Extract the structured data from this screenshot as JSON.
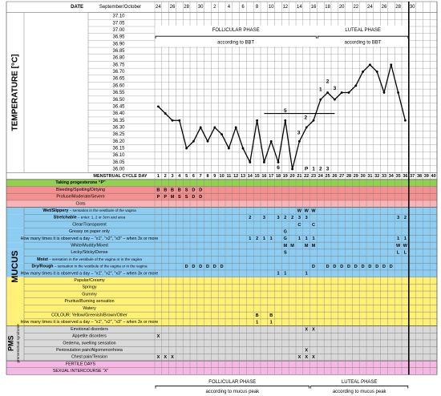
{
  "chart_data": {
    "type": "line",
    "date_label": "DATE",
    "month_label": "September/October",
    "dates": [
      "24",
      "26",
      "28",
      "30",
      "2",
      "4",
      "6",
      "8",
      "10",
      "12",
      "14",
      "16",
      "18",
      "20",
      "22",
      "24",
      "26",
      "28",
      "30"
    ],
    "y_label": "TEMPERATURE [°C]",
    "x_label": "MENSTRUAL CYCLE DAY",
    "x": [
      1,
      2,
      3,
      4,
      5,
      6,
      7,
      8,
      9,
      10,
      11,
      12,
      13,
      14,
      15,
      16,
      17,
      18,
      19,
      20,
      21,
      22,
      23,
      24,
      25,
      26,
      27,
      28,
      29,
      30,
      31,
      32,
      33,
      34,
      35,
      36,
      37,
      38,
      39,
      40
    ],
    "xlim": [
      0.5,
      40.5
    ],
    "values": [
      36.45,
      36.4,
      36.35,
      36.35,
      36.15,
      36.2,
      36.3,
      36.2,
      36.3,
      36.25,
      36.15,
      36.3,
      36.15,
      36.05,
      36.35,
      36.05,
      36.2,
      36.05,
      36.35,
      36.0,
      36.2,
      36.3,
      36.35,
      36.5,
      36.55,
      36.5,
      36.55,
      36.55,
      36.6,
      36.7,
      36.75,
      36.7,
      36.55,
      36.75,
      36.55,
      36.35,
      null,
      null,
      null,
      null
    ],
    "color": "#000000",
    "ylim": [
      36.0,
      37.1
    ],
    "yticks": [
      {
        "value": 37.1,
        "label": "37.10"
      },
      {
        "value": 37.05,
        "label": "37.05"
      },
      {
        "value": 37.0,
        "label": "37.00"
      },
      {
        "value": 36.95,
        "label": "36.95"
      },
      {
        "value": 36.9,
        "label": "36.90"
      },
      {
        "value": 36.85,
        "label": "36.85"
      },
      {
        "value": 36.8,
        "label": "36.80"
      },
      {
        "value": 36.75,
        "label": "36.75"
      },
      {
        "value": 36.7,
        "label": "36.70"
      },
      {
        "value": 36.65,
        "label": "36.65"
      },
      {
        "value": 36.6,
        "label": "36.60"
      },
      {
        "value": 36.55,
        "label": "36.55"
      },
      {
        "value": 36.5,
        "label": "36.50"
      },
      {
        "value": 36.45,
        "label": "36.45"
      },
      {
        "value": 36.4,
        "label": "36.40"
      },
      {
        "value": 36.35,
        "label": "36.35"
      },
      {
        "value": 36.3,
        "label": "36.30"
      },
      {
        "value": 36.25,
        "label": "36.25"
      },
      {
        "value": 36.2,
        "label": "36.20"
      },
      {
        "value": 36.15,
        "label": "36.15"
      },
      {
        "value": 36.1,
        "label": "36.10"
      },
      {
        "value": 36.05,
        "label": "36.05"
      },
      {
        "value": 36.0,
        "label": "36.00"
      }
    ],
    "coverline": {
      "value": 36.4,
      "from": 16,
      "to": 26
    },
    "annotations": [
      {
        "x": 19,
        "y": 36.42,
        "text": "5"
      },
      {
        "x": 18,
        "y": 36.01,
        "text": "6"
      },
      {
        "x": 20.9,
        "y": 36.26,
        "text": "3"
      },
      {
        "x": 21.9,
        "y": 36.37,
        "text": "2"
      },
      {
        "x": 24,
        "y": 36.57,
        "text": "1"
      },
      {
        "x": 25,
        "y": 36.63,
        "text": "2"
      },
      {
        "x": 26,
        "y": 36.58,
        "text": "3"
      },
      {
        "x": 22,
        "y": 36.0,
        "text": "P"
      },
      {
        "x": 23,
        "y": 36.0,
        "text": "1"
      },
      {
        "x": 24,
        "y": 36.0,
        "text": "2"
      },
      {
        "x": 25,
        "y": 36.0,
        "text": "3"
      }
    ],
    "phases": [
      {
        "name": "FOLLICULAR PHASE",
        "note": "according to BBT",
        "from": 1,
        "to": 23
      },
      {
        "name": "LUTEAL PHASE",
        "note": "according to BBT",
        "from": 24,
        "to": 36
      }
    ]
  },
  "table": {
    "sections": [
      {
        "rows": [
          {
            "label": "Taking progesterone “P”",
            "color": "#92d050",
            "cells": {}
          },
          {
            "label": "Bleeding/Spotting/Dirtying",
            "color": "#f4908f",
            "cells": {
              "1": "B",
              "2": "B",
              "3": "B",
              "4": "B",
              "5": "S",
              "6": "D",
              "7": "D"
            }
          },
          {
            "label": "Profuse/Moderate/Severe",
            "color": "#f4908f",
            "cells": {
              "1": "P",
              "2": "P",
              "3": "M",
              "4": "S",
              "5": "S",
              "6": "D",
              "7": "D"
            }
          },
          {
            "label": "Clots",
            "color": "#f8b4b4",
            "cells": {}
          }
        ]
      },
      {
        "title": "MUCUS",
        "rows": [
          {
            "label": "Wet/Slippery",
            "note": " – sensation in the vestibule of the vagina",
            "color": "#8ecdf2",
            "cells": {
              "21": "W",
              "22": "W",
              "23": "W"
            }
          },
          {
            "label": "Stretchable",
            "note": " – enter: 1, 2 or 3cm and area",
            "color": "#8ecdf2",
            "cells": {
              "14": "2",
              "16": "3",
              "18": "3",
              "19": "2",
              "20": "2",
              "21": "3",
              "22": "3",
              "35": "3",
              "36": "2"
            }
          },
          {
            "label": "Clear/Transparent",
            "color": "#8ecdf2",
            "cells": {
              "21": "C",
              "23": "C"
            }
          },
          {
            "label": "Greasy on paper only",
            "color": "#8ecdf2",
            "cells": {
              "19": "G"
            }
          },
          {
            "label": "How many times it is observed a day – \"x1\", \"x2\", \"x3\" – when 3x or more",
            "color": "#8ecdf2",
            "cells": {
              "14": "1",
              "15": "2",
              "16": "1",
              "17": "1",
              "19": "G",
              "21": "1",
              "22": "1",
              "23": "1",
              "35": "1",
              "36": "1"
            }
          },
          {
            "label": "White/Muddy/Mixed",
            "color": "#8ecdf2",
            "cells": {
              "19": "M",
              "20": "M",
              "22": "M",
              "23": "M",
              "35": "W",
              "36": "W"
            }
          },
          {
            "label": "Lecky/Sticky/Dense",
            "color": "#8ecdf2",
            "cells": {
              "19": "S",
              "35": "L",
              "36": "L"
            }
          },
          {
            "label": "Moist",
            "note": " – sensation in the vestibule of the vagina or in the vagina",
            "color": "#8ecdf2",
            "cells": {}
          },
          {
            "label": "Dry/Rough",
            "note": " – sensation in the vestibule of the vagina or in the vagina",
            "color": "#8ecdf2",
            "cells": {
              "5": "D",
              "6": "D",
              "7": "D",
              "8": "D",
              "9": "D",
              "10": "D",
              "23": "D",
              "25": "D",
              "26": "D",
              "27": "D",
              "28": "D",
              "29": "D",
              "30": "D",
              "31": "D",
              "32": "D",
              "33": "D",
              "34": "D"
            }
          },
          {
            "label": "How many times it is observed a day – \"x1\", \"x2\", \"x3\" – when 3x or more",
            "color": "#8ecdf2",
            "cells": {
              "18": "1",
              "19": "1",
              "22": "1"
            }
          },
          {
            "label": "Papular/Creamy",
            "color": "#fff176",
            "cells": {}
          },
          {
            "label": "Springy",
            "color": "#fff176",
            "cells": {}
          },
          {
            "label": "Gummy",
            "color": "#fff176",
            "cells": {}
          },
          {
            "label": "Pruritus/Burning sensation",
            "color": "#fff176",
            "cells": {}
          },
          {
            "label": "Watery",
            "color": "#fff176",
            "cells": {}
          },
          {
            "label": "COLOUR: Yellow/Greenish/Brown/Other",
            "color": "#fff176",
            "cells": {
              "15": "B",
              "17": "B"
            }
          },
          {
            "label": "How many times it is observed a day – \"x1\", \"x2\", \"x3\" – when 3x or more",
            "color": "#fff176",
            "cells": {
              "15": "1",
              "17": "1"
            }
          }
        ]
      },
      {
        "title": "PMS",
        "subtitle": "premenstrual syndrome",
        "rows": [
          {
            "label": "Emotional disorders",
            "color": "#d9d9d9",
            "cells": {
              "22": "X",
              "23": "X"
            }
          },
          {
            "label": "Appetite disorders",
            "color": "#d9d9d9",
            "cells": {
              "1": "X"
            }
          },
          {
            "label": "Oedema, swelling sensation",
            "color": "#d9d9d9",
            "cells": {}
          },
          {
            "label": "Periovulation pain/Algomenorrhoea",
            "color": "#d9d9d9",
            "cells": {
              "22": "X"
            }
          },
          {
            "label": "Chest pain/Tension",
            "color": "#d9d9d9",
            "cells": {
              "1": "X",
              "2": "X",
              "3": "X",
              "21": "X",
              "22": "X",
              "23": "X"
            }
          }
        ]
      },
      {
        "rows": [
          {
            "label": "FERTILE DAYS",
            "color": "#f5b8e3",
            "cells": {}
          },
          {
            "label": "SEXUAL INTERCOURSE “X”",
            "color": "#f5b8e3",
            "cells": {}
          }
        ]
      }
    ],
    "phases": [
      {
        "name": "FOLLICULAR PHASE",
        "note": "according to mucus peak",
        "from": 1,
        "to": 22
      },
      {
        "name": "LUTEAL PHASE",
        "note": "according to mucus peak",
        "from": 23,
        "to": 36
      }
    ]
  }
}
